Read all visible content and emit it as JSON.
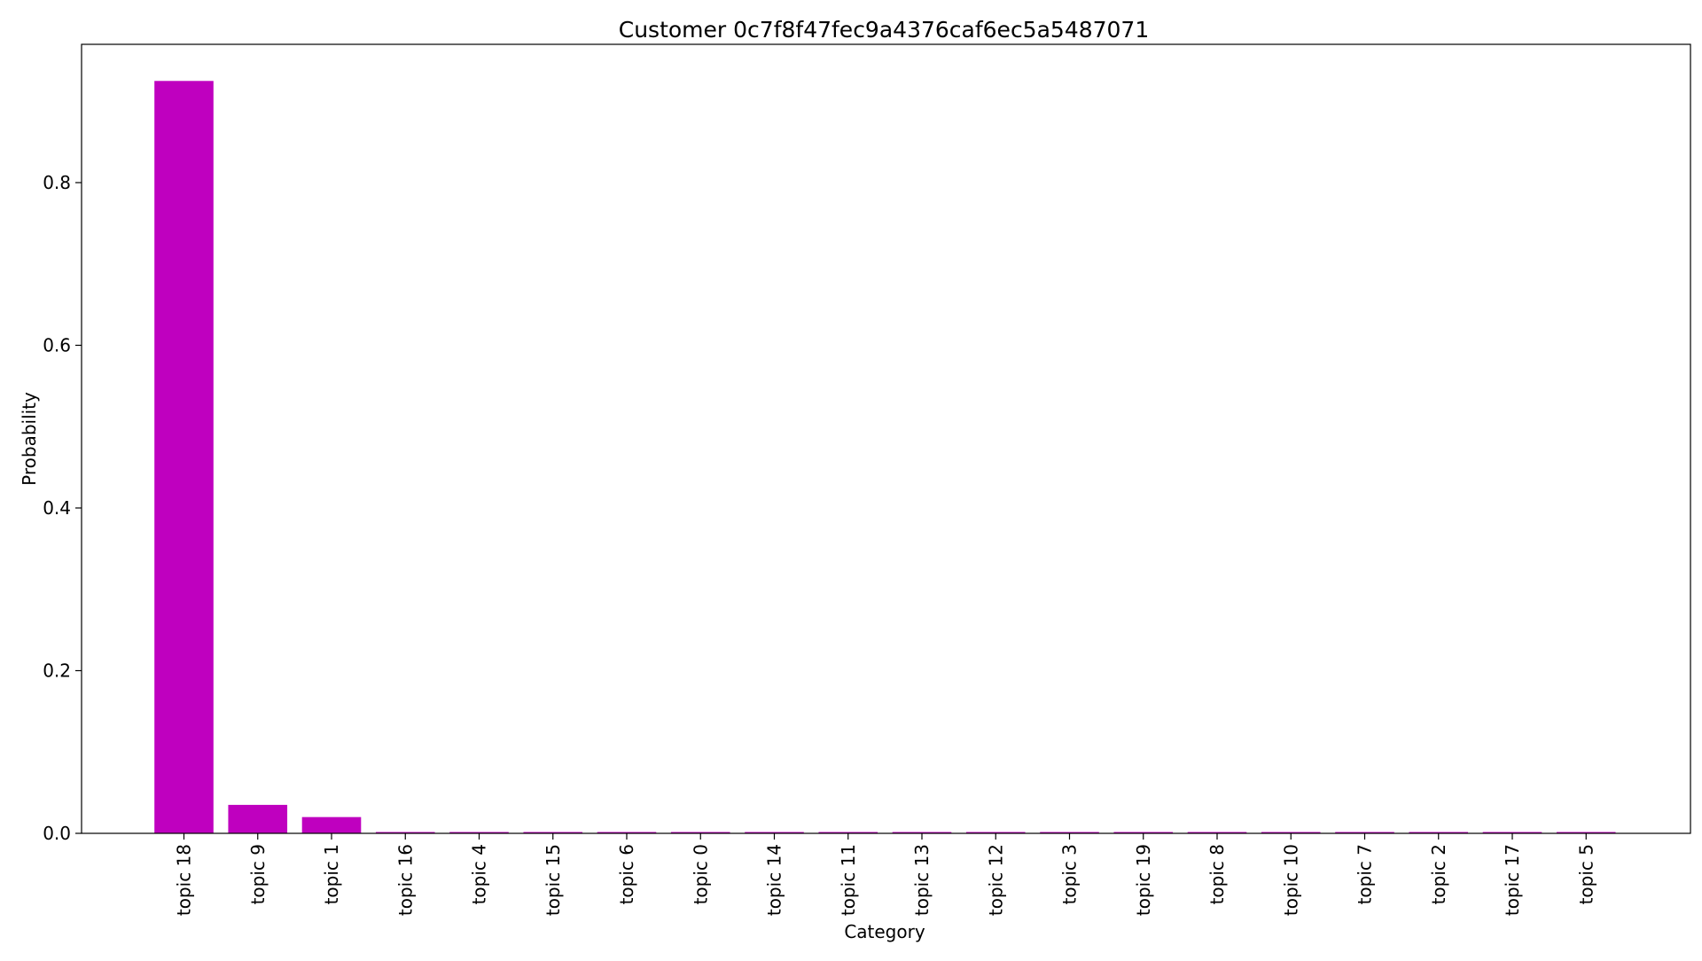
{
  "chart_data": {
    "type": "bar",
    "title": "Customer 0c7f8f47fec9a4376caf6ec5a5487071",
    "xlabel": "Category",
    "ylabel": "Probability",
    "ylim": [
      0,
      0.97
    ],
    "yticks": [
      "0.0",
      "0.2",
      "0.4",
      "0.6",
      "0.8"
    ],
    "categories": [
      "topic 18",
      "topic 9",
      "topic 1",
      "topic 16",
      "topic 4",
      "topic 15",
      "topic 6",
      "topic 0",
      "topic 14",
      "topic 11",
      "topic 13",
      "topic 12",
      "topic 3",
      "topic 19",
      "topic 8",
      "topic 10",
      "topic 7",
      "topic 2",
      "topic 17",
      "topic 5"
    ],
    "values": [
      0.925,
      0.035,
      0.02,
      0.0015,
      0.0015,
      0.0015,
      0.0015,
      0.0015,
      0.0015,
      0.0015,
      0.0015,
      0.0015,
      0.0015,
      0.0015,
      0.0015,
      0.0015,
      0.0015,
      0.0015,
      0.0015,
      0.0015
    ],
    "bar_color": "#bf00bf",
    "grid": false,
    "legend": false
  }
}
